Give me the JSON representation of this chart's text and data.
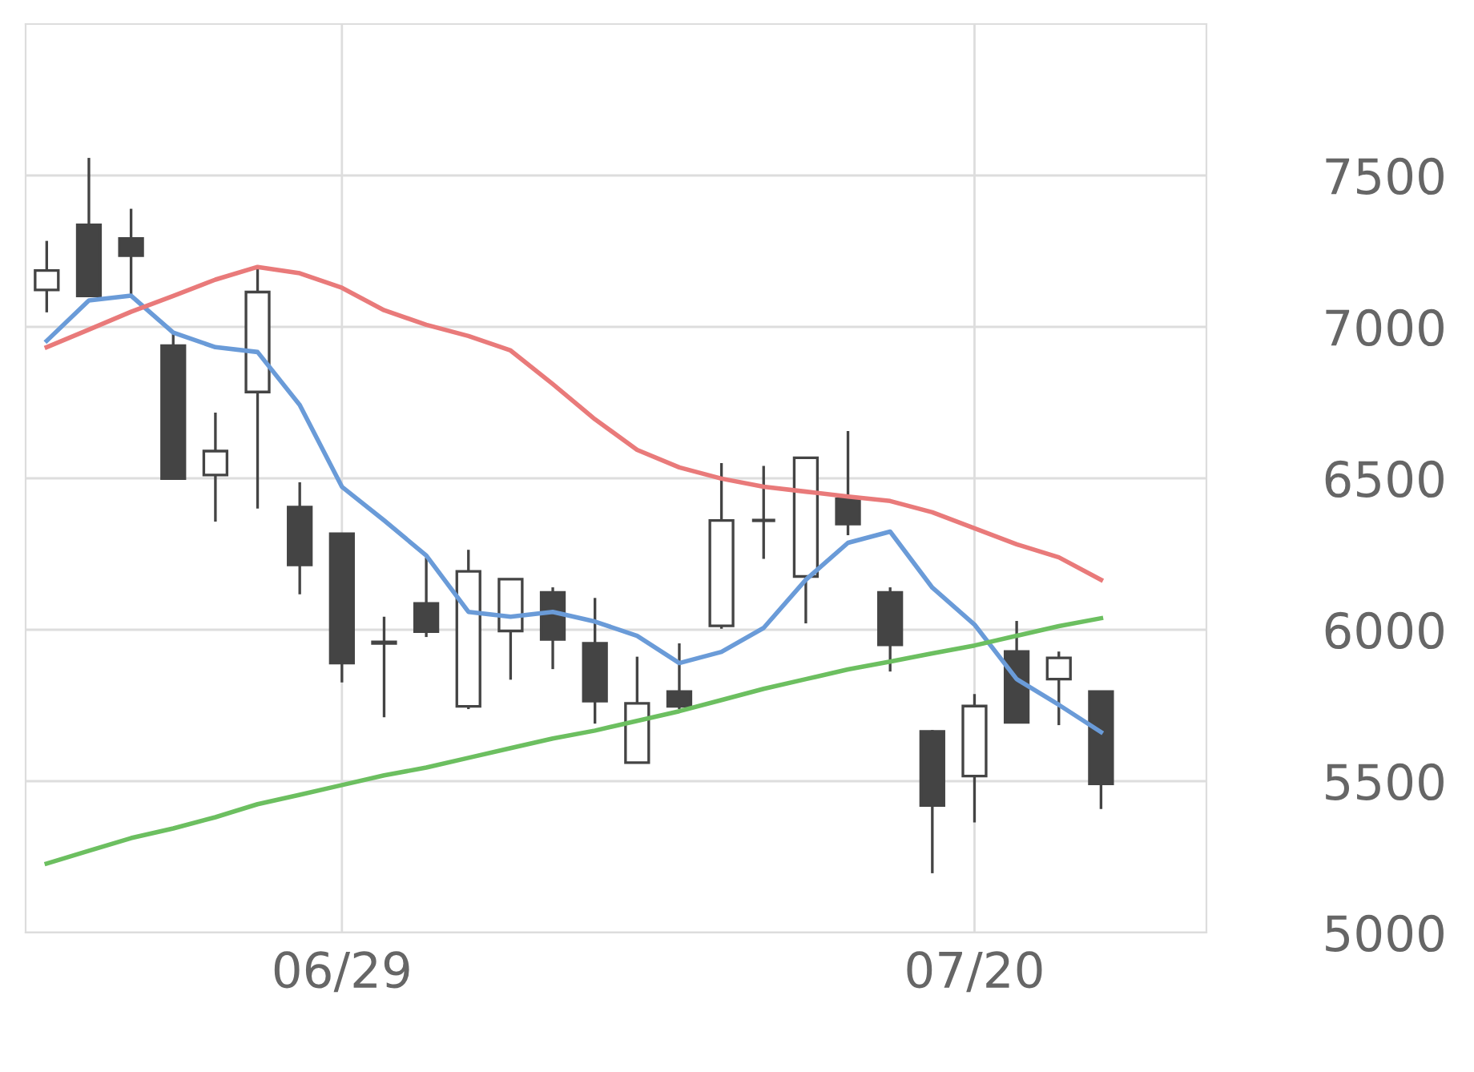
{
  "chart_data": {
    "type": "candlestick",
    "categories": [
      null,
      null,
      null,
      null,
      null,
      null,
      null,
      "06/29",
      null,
      null,
      null,
      null,
      null,
      null,
      null,
      null,
      null,
      null,
      null,
      null,
      null,
      null,
      "07/20",
      null,
      null,
      null
    ],
    "ohlc": [
      [
        7122,
        7284,
        7048,
        7186
      ],
      [
        7337,
        7558,
        7100,
        7102
      ],
      [
        7292,
        7390,
        7106,
        7235
      ],
      [
        6938,
        6979,
        6499,
        6499
      ],
      [
        6511,
        6717,
        6357,
        6590
      ],
      [
        6785,
        7196,
        6400,
        7115
      ],
      [
        6405,
        6487,
        6117,
        6214
      ],
      [
        6317,
        6317,
        5826,
        5890
      ],
      [
        5960,
        6043,
        5711,
        5955
      ],
      [
        6087,
        6238,
        5976,
        5994
      ],
      [
        5747,
        6264,
        5738,
        6193
      ],
      [
        5996,
        6167,
        5835,
        6167
      ],
      [
        6123,
        6140,
        5870,
        5968
      ],
      [
        5955,
        6105,
        5690,
        5764
      ],
      [
        5561,
        5911,
        5561,
        5757
      ],
      [
        5796,
        5955,
        5738,
        5747
      ],
      [
        6013,
        6550,
        6003,
        6361
      ],
      [
        6361,
        6541,
        6234,
        6361
      ],
      [
        6176,
        6568,
        6021,
        6568
      ],
      [
        6432,
        6656,
        6312,
        6349
      ],
      [
        6123,
        6140,
        5862,
        5950
      ],
      [
        5664,
        5669,
        5196,
        5420
      ],
      [
        5517,
        5788,
        5364,
        5748
      ],
      [
        5928,
        6029,
        5694,
        5694
      ],
      [
        5837,
        5928,
        5685,
        5907
      ],
      [
        5796,
        5796,
        5408,
        5491
      ]
    ],
    "series": [
      {
        "type": "line",
        "color": "#6a9bd8",
        "values": [
          6954,
          7087,
          7103,
          6981,
          6933,
          6917,
          6742,
          6472,
          6361,
          6245,
          6059,
          6043,
          6059,
          6027,
          5980,
          5890,
          5927,
          6006,
          6165,
          6287,
          6324,
          6139,
          6017,
          5837,
          5752,
          5662
        ]
      },
      {
        "type": "line",
        "color": "#e97a7a",
        "values": [
          6933,
          6991,
          7050,
          7102,
          7156,
          7198,
          7177,
          7129,
          7055,
          7007,
          6970,
          6922,
          6811,
          6695,
          6594,
          6536,
          6499,
          6472,
          6456,
          6440,
          6425,
          6388,
          6335,
          6282,
          6239,
          6165
        ]
      },
      {
        "type": "line",
        "color": "#6cbf60",
        "values": [
          5228,
          5270,
          5312,
          5344,
          5381,
          5424,
          5455,
          5487,
          5519,
          5545,
          5577,
          5609,
          5641,
          5667,
          5699,
          5731,
          5768,
          5805,
          5837,
          5869,
          5895,
          5922,
          5948,
          5980,
          6012,
          6038
        ]
      }
    ],
    "ylim": [
      5000,
      8000
    ],
    "yticks": [
      5000,
      5500,
      6000,
      6500,
      7000,
      7500
    ],
    "grid": true,
    "legend": false
  }
}
